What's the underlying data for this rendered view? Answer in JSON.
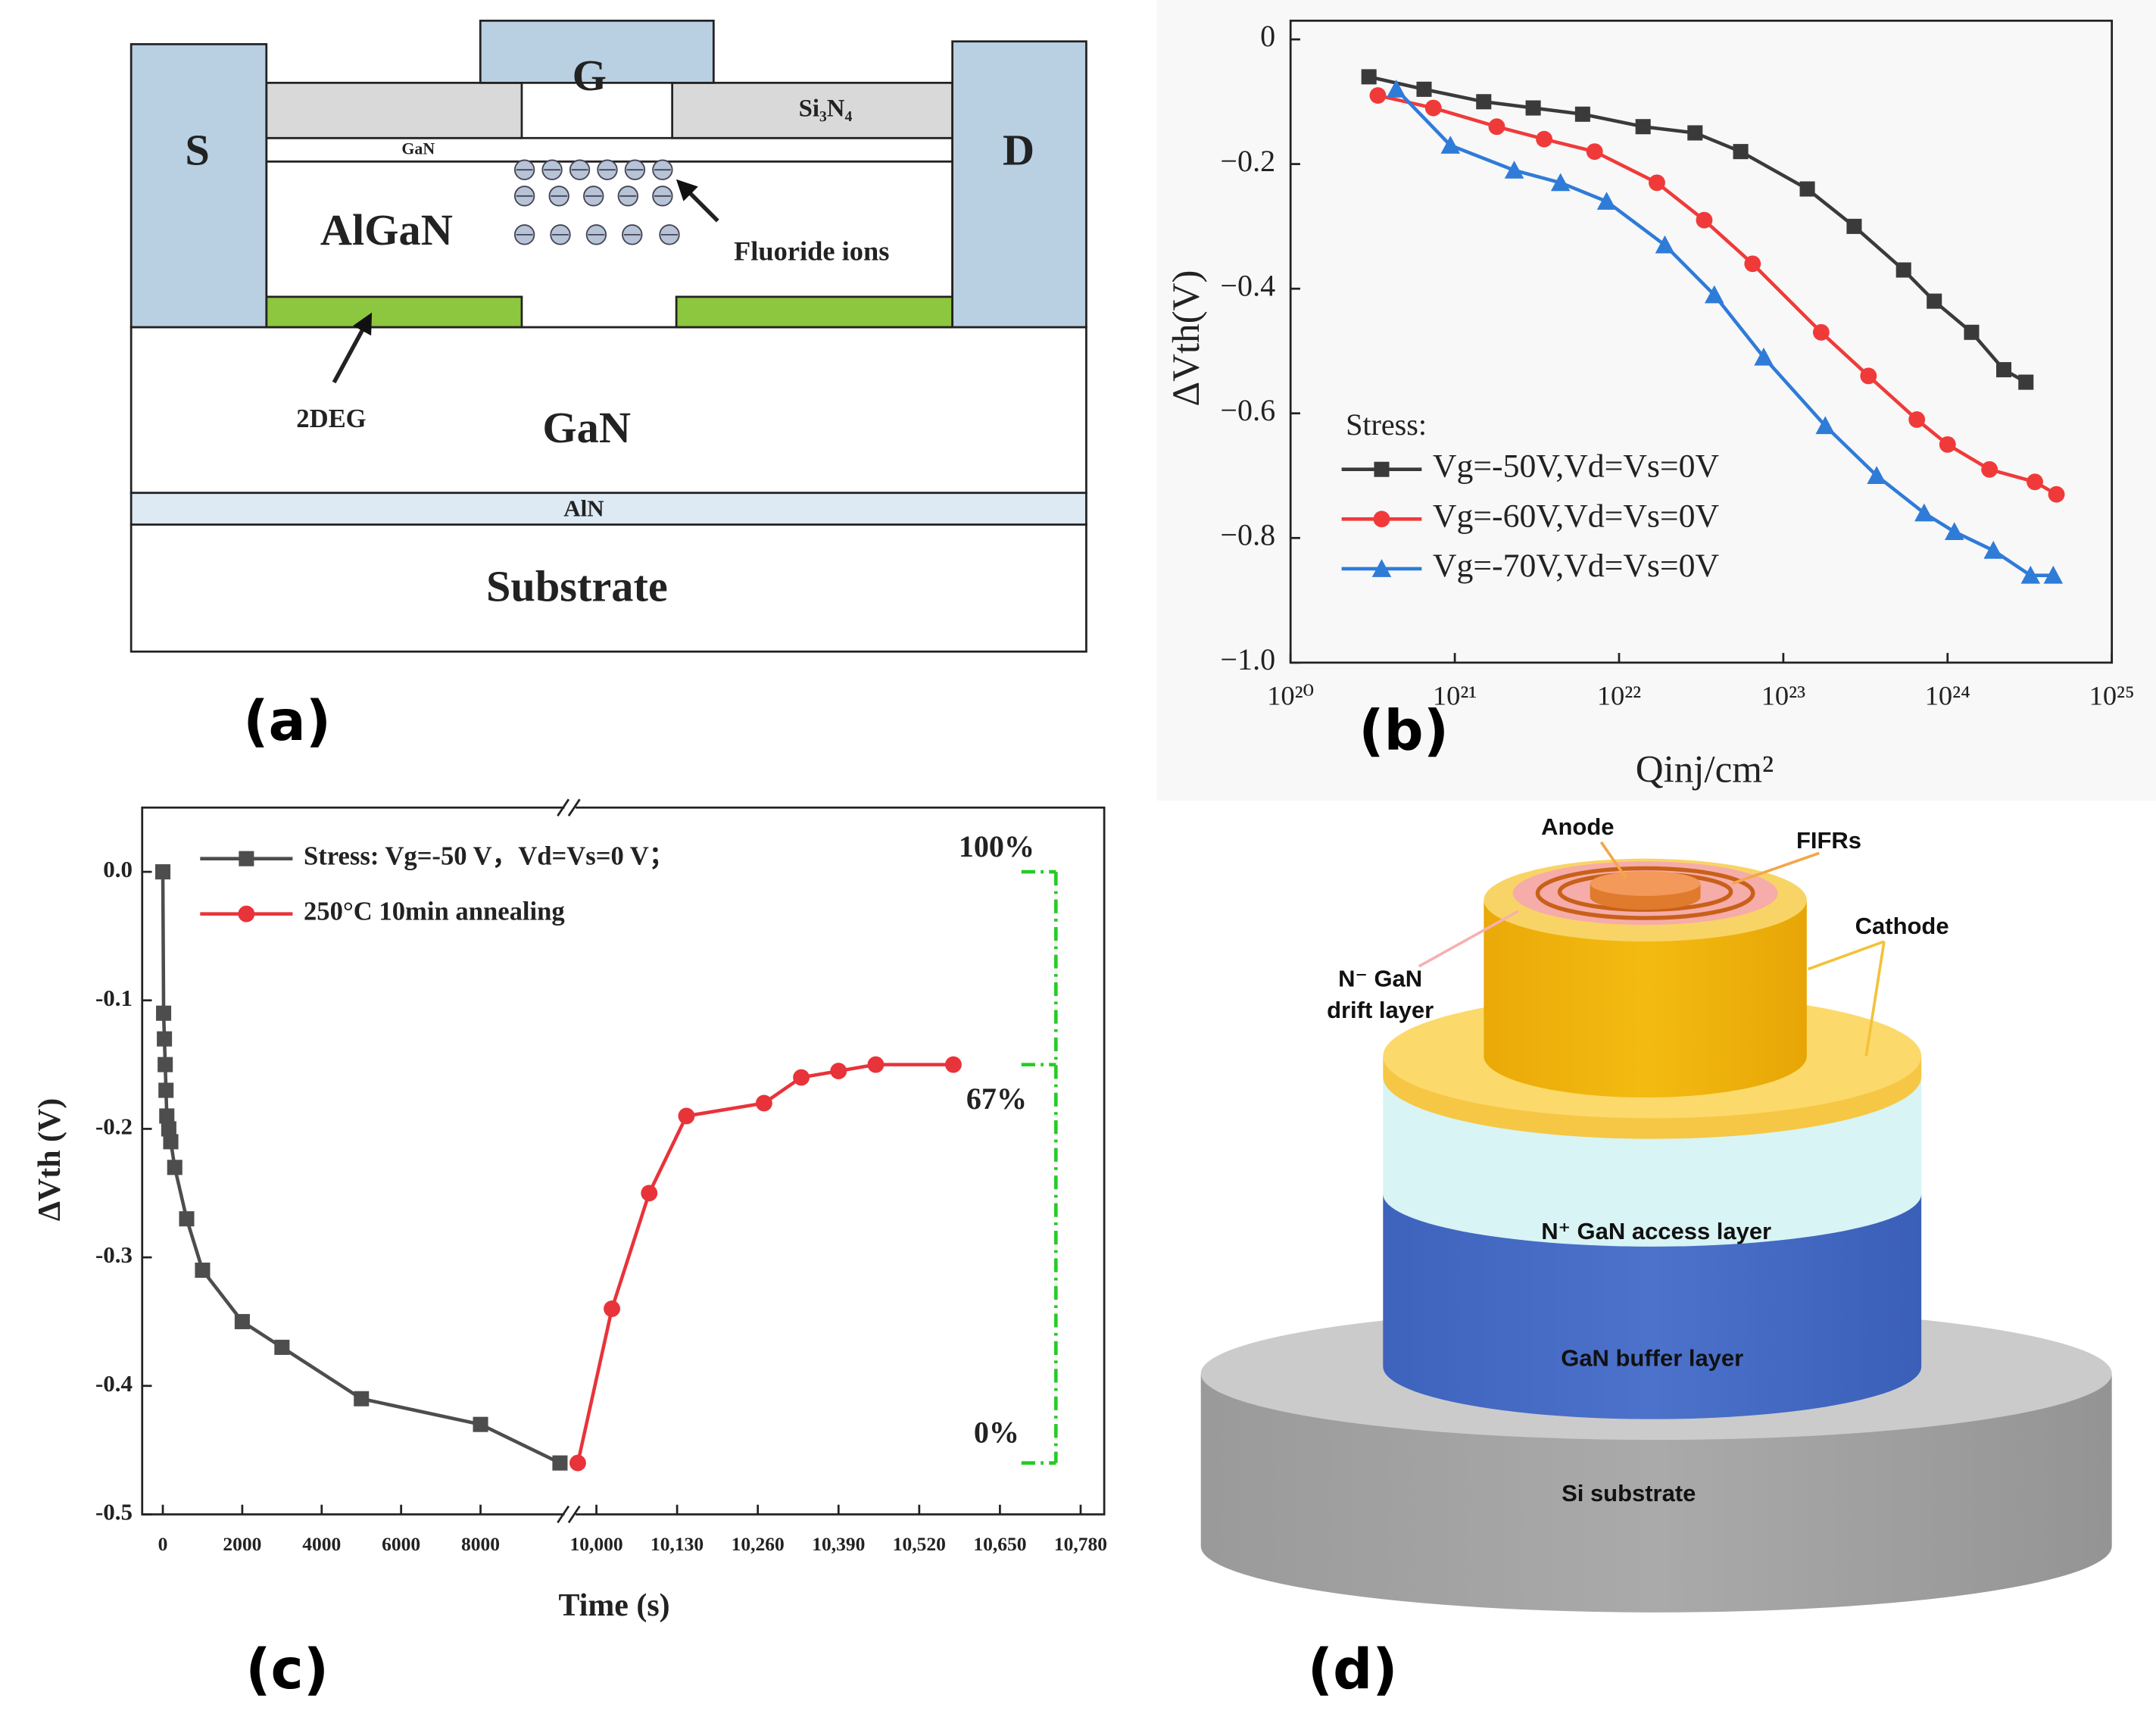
{
  "panel_a": {
    "label": "(a)",
    "source": "S",
    "gate": "G",
    "drain": "D",
    "passivation": "Si₃N₄",
    "cap": "GaN",
    "barrier": "AlGaN",
    "ions": "Fluoride ions",
    "channel": "2DEG",
    "buffer": "GaN",
    "nucleation": "AlN",
    "substrate": "Substrate"
  },
  "chart_data": [
    {
      "type": "line",
      "panel_label": "(b)",
      "xlabel": "Qinj/cm²",
      "ylabel": "ΔVth(V)",
      "xscale": "log",
      "xlim": [
        1e+20,
        1e+25
      ],
      "xticks": [
        {
          "value": 1e+20,
          "label": "10²⁰"
        },
        {
          "value": 1e+21,
          "label": "10²¹"
        },
        {
          "value": 1e+22,
          "label": "10²²"
        },
        {
          "value": 1e+23,
          "label": "10²³"
        },
        {
          "value": 1e+24,
          "label": "10²⁴"
        },
        {
          "value": 1e+25,
          "label": "10²⁵"
        }
      ],
      "ylim": [
        -1.0,
        0.03
      ],
      "yticks": [
        0,
        {
          "value": -0.2,
          "label": "−0.2"
        },
        {
          "value": -0.4,
          "label": "−0.4"
        },
        {
          "value": -0.6,
          "label": "−0.6"
        },
        {
          "value": -0.8,
          "label": "−0.8"
        },
        {
          "value": -1.0,
          "label": "−1.0"
        }
      ],
      "grid": false,
      "legend": "lower left",
      "legend_title": "Stress:",
      "series": [
        {
          "name": "Vg=-50V,Vd=Vs=0V",
          "color": "#3a3a3a",
          "marker": "square",
          "x": [
            3e+20,
            6.5e+20,
            1.5e+21,
            3e+21,
            6e+21,
            1.4e+22,
            2.9e+22,
            5.5e+22,
            1.4e+23,
            2.7e+23,
            5.4e+23,
            8.3e+23,
            1.4e+24,
            2.2e+24,
            3e+24
          ],
          "values": [
            -0.06,
            -0.08,
            -0.1,
            -0.11,
            -0.12,
            -0.14,
            -0.15,
            -0.18,
            -0.24,
            -0.3,
            -0.37,
            -0.42,
            -0.47,
            -0.53,
            -0.55
          ]
        },
        {
          "name": "Vg=-60V,Vd=Vs=0V",
          "color": "#f03a3a",
          "marker": "circle",
          "x": [
            3.4e+20,
            7.4e+20,
            1.8e+21,
            3.5e+21,
            7.1e+21,
            1.7e+22,
            3.3e+22,
            6.5e+22,
            1.7e+23,
            3.3e+23,
            6.5e+23,
            1e+24,
            1.8e+24,
            3.4e+24,
            4.6e+24
          ],
          "values": [
            -0.09,
            -0.11,
            -0.14,
            -0.16,
            -0.18,
            -0.23,
            -0.29,
            -0.36,
            -0.47,
            -0.54,
            -0.61,
            -0.65,
            -0.69,
            -0.71,
            -0.73
          ]
        },
        {
          "name": "Vg=-70V,Vd=Vs=0V",
          "color": "#2f7bd8",
          "marker": "triangle",
          "x": [
            4.4e+20,
            9.4e+20,
            2.3e+21,
            4.4e+21,
            8.4e+21,
            1.9e+22,
            3.8e+22,
            7.6e+22,
            1.8e+23,
            3.7e+23,
            7.2e+23,
            1.1e+24,
            1.9e+24,
            3.2e+24,
            4.4e+24
          ],
          "values": [
            -0.08,
            -0.17,
            -0.21,
            -0.23,
            -0.26,
            -0.33,
            -0.41,
            -0.51,
            -0.62,
            -0.7,
            -0.76,
            -0.79,
            -0.82,
            -0.86,
            -0.86
          ]
        }
      ]
    },
    {
      "type": "line",
      "panel_label": "(c)",
      "xlabel": "Time (s)",
      "ylabel": "ΔVth (V)",
      "x_segments": [
        {
          "xlim": [
            -520,
            10150
          ],
          "xticks": [
            0,
            2000,
            4000,
            6000,
            8000
          ]
        },
        {
          "xlim": [
            9962,
            10818
          ],
          "xticks": [
            {
              "value": 10000,
              "label": "10,000"
            },
            {
              "value": 10130,
              "label": "10,130"
            },
            {
              "value": 10260,
              "label": "10,260"
            },
            {
              "value": 10390,
              "label": "10,390"
            },
            {
              "value": 10520,
              "label": "10,520"
            },
            {
              "value": 10650,
              "label": "10,650"
            },
            {
              "value": 10780,
              "label": "10,780"
            }
          ]
        }
      ],
      "ylim": [
        -0.5,
        0.05
      ],
      "yticks": [
        {
          "value": 0,
          "label": "0.0"
        },
        -0.1,
        -0.2,
        -0.3,
        -0.4,
        -0.5
      ],
      "grid": false,
      "legend": "upper left",
      "series": [
        {
          "name": "Stress:  Vg=-50 V，Vd=Vs=0 V；",
          "color": "#4d4d4d",
          "marker": "square",
          "x_segment": 0,
          "x": [
            0,
            20,
            40,
            60,
            80,
            100,
            150,
            200,
            300,
            600,
            1000,
            2000,
            3000,
            5000,
            8000,
            10000
          ],
          "values": [
            0,
            -0.11,
            -0.13,
            -0.15,
            -0.17,
            -0.19,
            -0.2,
            -0.21,
            -0.23,
            -0.27,
            -0.31,
            -0.35,
            -0.37,
            -0.41,
            -0.43,
            -0.46
          ]
        },
        {
          "name": "250°C 10min annealing",
          "color": "#e8333a",
          "marker": "circle",
          "x_segment": 1,
          "x": [
            9970,
            10025,
            10085,
            10145,
            10270,
            10330,
            10390,
            10450,
            10575
          ],
          "values": [
            -0.46,
            -0.34,
            -0.25,
            -0.19,
            -0.18,
            -0.16,
            -0.155,
            -0.15,
            -0.15
          ]
        }
      ],
      "annotation_color": "#22cc22",
      "annotations": [
        {
          "label": "100%",
          "y": 0
        },
        {
          "label": "67%",
          "y": -0.15
        },
        {
          "label": "0%",
          "y": -0.46
        }
      ]
    }
  ],
  "panel_d": {
    "label": "(d)",
    "anode": "Anode",
    "fifrs": "FIFRs",
    "cathode": "Cathode",
    "drift_1": "N⁻ GaN",
    "drift_2": "drift layer",
    "access": "N⁺ GaN access layer",
    "buffer": "GaN buffer layer",
    "substrate": "Si substrate"
  }
}
